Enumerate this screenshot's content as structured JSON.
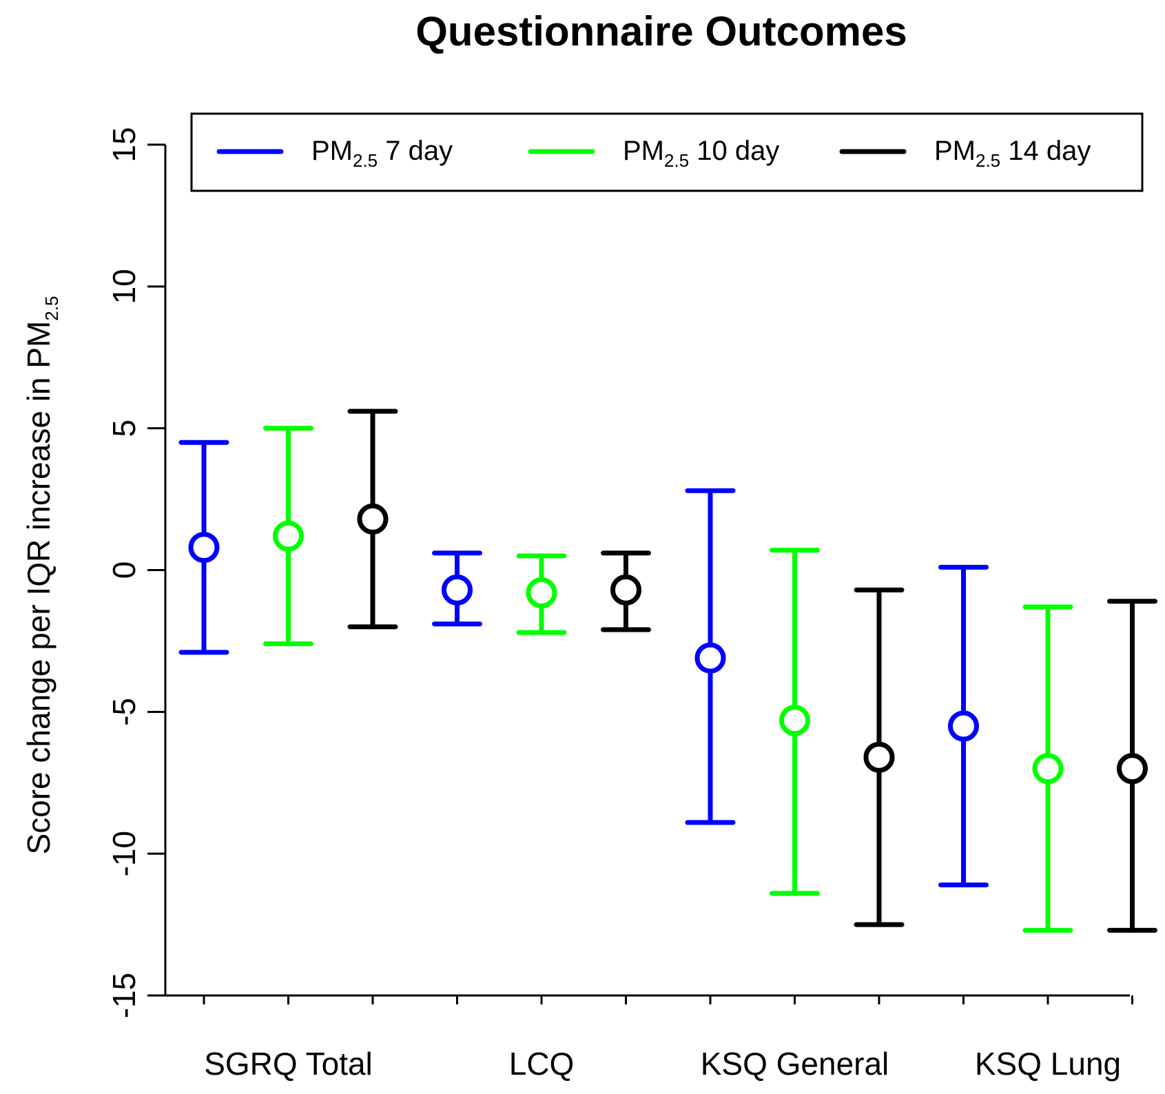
{
  "chart_data": {
    "type": "scatter",
    "subtype": "point-estimate-with-error-bars",
    "title": "Questionnaire Outcomes",
    "ylabel": "Score change per IQR increase in PM2.5",
    "ylabel_parts": {
      "main": "Score change per IQR increase in  PM",
      "sub": "2.5"
    },
    "xlabel": "",
    "ylim": [
      -15,
      15
    ],
    "yticks": [
      -15,
      -10,
      -5,
      0,
      5,
      10,
      15
    ],
    "ytick_labels": [
      "-15",
      "-10",
      "-5",
      "0",
      "5",
      "10",
      "15"
    ],
    "categories": [
      "SGRQ Total",
      "LCQ",
      "KSQ General",
      "KSQ Lung"
    ],
    "legend_position": "top",
    "series": [
      {
        "name": "PM2.5 7 day",
        "label_main": "PM",
        "label_sub": "2.5",
        "label_rest": " 7 day",
        "color": "#0000ff",
        "estimates": [
          0.8,
          -0.7,
          -3.1,
          -5.5
        ],
        "lower": [
          -2.9,
          -1.9,
          -8.9,
          -11.1
        ],
        "upper": [
          4.5,
          0.6,
          2.8,
          0.1
        ]
      },
      {
        "name": "PM2.5 10 day",
        "label_main": "PM",
        "label_sub": "2.5",
        "label_rest": " 10 day",
        "color": "#00ff00",
        "estimates": [
          1.2,
          -0.8,
          -5.3,
          -7.0
        ],
        "lower": [
          -2.6,
          -2.2,
          -11.4,
          -12.7
        ],
        "upper": [
          5.0,
          0.5,
          0.7,
          -1.3
        ]
      },
      {
        "name": "PM2.5 14 day",
        "label_main": "PM",
        "label_sub": "2.5",
        "label_rest": " 14 day",
        "color": "#000000",
        "estimates": [
          1.8,
          -0.7,
          -6.6,
          -7.0
        ],
        "lower": [
          -2.0,
          -2.1,
          -12.5,
          -12.7
        ],
        "upper": [
          5.6,
          0.6,
          -0.7,
          -1.1
        ]
      }
    ]
  }
}
